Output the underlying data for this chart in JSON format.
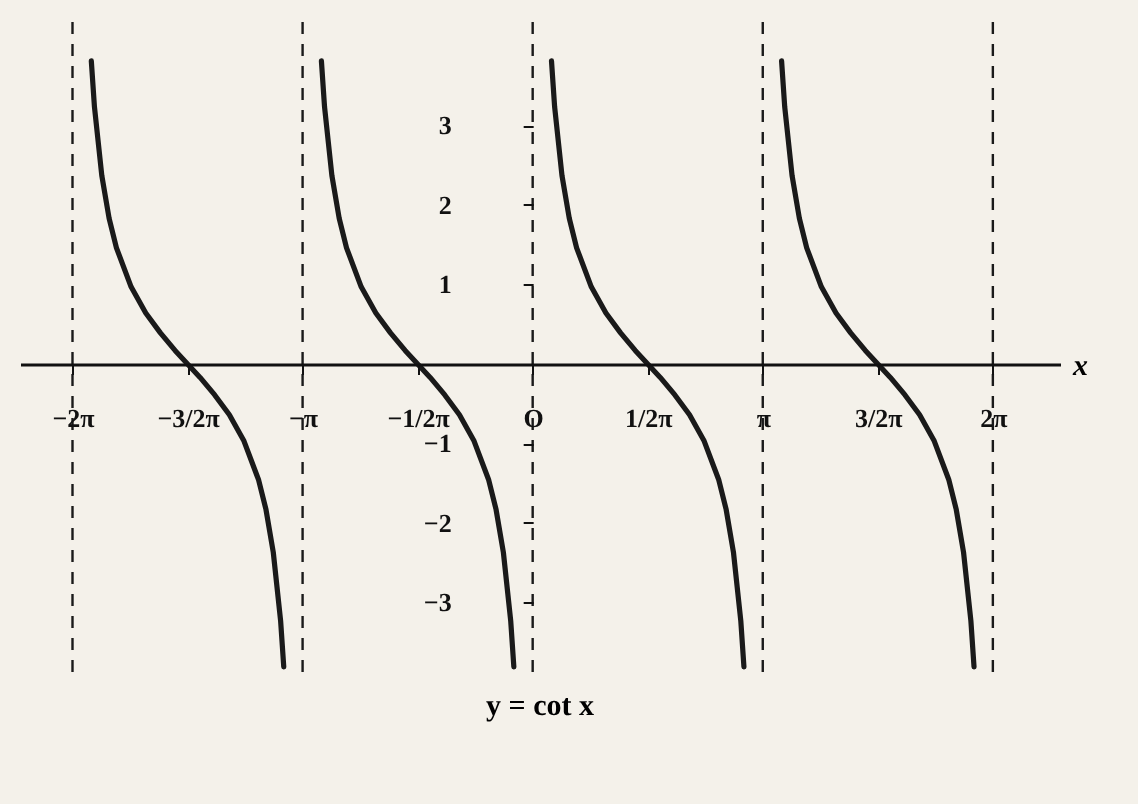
{
  "chart_data": {
    "type": "line",
    "xlabel": "x",
    "annotations": [
      "y = cot x"
    ],
    "xlim": [
      -7.0,
      7.2
    ],
    "ylim": [
      -4.0,
      4.3
    ],
    "xticks": [
      {
        "value": -6.2832,
        "label": "−2π"
      },
      {
        "value": -4.7124,
        "label": "−3/2π"
      },
      {
        "value": -3.1416,
        "label": "−π"
      },
      {
        "value": -1.5708,
        "label": "−1/2π"
      },
      {
        "value": 0,
        "label": "O"
      },
      {
        "value": 1.5708,
        "label": "1/2π"
      },
      {
        "value": 3.1416,
        "label": "π"
      },
      {
        "value": 4.7124,
        "label": "3/2π"
      },
      {
        "value": 6.2832,
        "label": "2π"
      }
    ],
    "yticks": [
      {
        "value": -3,
        "label": "−3"
      },
      {
        "value": -2,
        "label": "−2"
      },
      {
        "value": -1,
        "label": "−1"
      },
      1,
      2,
      3
    ],
    "grid": false,
    "marker": "none",
    "line_style": "solid",
    "series": [
      {
        "color": "#1a1a1a",
        "x": [
          -6.0262,
          -5.9832,
          -5.8832,
          -5.7832,
          -5.6832,
          -5.4832,
          -5.2832,
          -5.0832,
          -4.8832,
          -4.7124,
          -4.5416,
          -4.3416,
          -4.1416,
          -3.9416,
          -3.7416,
          -3.6416,
          -3.5416,
          -3.4416,
          -3.3986
        ],
        "values": [
          3.81,
          3.23,
          2.37,
          1.83,
          1.46,
          0.97,
          0.64,
          0.39,
          0.17,
          0,
          -0.17,
          -0.39,
          -0.64,
          -0.97,
          -1.46,
          -1.83,
          -2.37,
          -3.23,
          -3.81
        ]
      },
      {
        "color": "#1a1a1a",
        "x": [
          -2.8846,
          -2.8416,
          -2.7416,
          -2.6416,
          -2.5416,
          -2.3416,
          -2.1416,
          -1.9416,
          -1.7416,
          -1.5708,
          -1.4,
          -1.2,
          -1.0,
          -0.8,
          -0.6,
          -0.5,
          -0.4,
          -0.3,
          -0.257
        ],
        "values": [
          3.81,
          3.23,
          2.37,
          1.83,
          1.46,
          0.97,
          0.64,
          0.39,
          0.17,
          0,
          -0.17,
          -0.39,
          -0.64,
          -0.97,
          -1.46,
          -1.83,
          -2.37,
          -3.23,
          -3.81
        ]
      },
      {
        "color": "#1a1a1a",
        "x": [
          0.257,
          0.3,
          0.4,
          0.5,
          0.6,
          0.8,
          1.0,
          1.2,
          1.4,
          1.5708,
          1.7416,
          1.9416,
          2.1416,
          2.3416,
          2.5416,
          2.6416,
          2.7416,
          2.8416,
          2.8846
        ],
        "values": [
          3.81,
          3.23,
          2.37,
          1.83,
          1.46,
          0.97,
          0.64,
          0.39,
          0.17,
          0,
          -0.17,
          -0.39,
          -0.64,
          -0.97,
          -1.46,
          -1.83,
          -2.37,
          -3.23,
          -3.81
        ]
      },
      {
        "color": "#1a1a1a",
        "x": [
          3.3986,
          3.4416,
          3.5416,
          3.6416,
          3.7416,
          3.9416,
          4.1416,
          4.3416,
          4.5416,
          4.7124,
          4.8832,
          5.0832,
          5.2832,
          5.4832,
          5.6832,
          5.7832,
          5.8832,
          5.9832,
          6.0262
        ],
        "values": [
          3.81,
          3.23,
          2.37,
          1.83,
          1.46,
          0.97,
          0.64,
          0.39,
          0.17,
          0,
          -0.17,
          -0.39,
          -0.64,
          -0.97,
          -1.46,
          -1.83,
          -2.37,
          -3.23,
          -3.81
        ]
      }
    ],
    "ref_lines": [
      {
        "axis": "x",
        "value": -6.2832,
        "line_style": "dashed",
        "color": "#1a1a1a"
      },
      {
        "axis": "x",
        "value": -3.1416,
        "line_style": "dashed",
        "color": "#1a1a1a"
      },
      {
        "axis": "x",
        "value": 0,
        "line_style": "dashed",
        "color": "#1a1a1a"
      },
      {
        "axis": "x",
        "value": 3.1416,
        "line_style": "dashed",
        "color": "#1a1a1a"
      },
      {
        "axis": "x",
        "value": 6.2832,
        "line_style": "dashed",
        "color": "#1a1a1a"
      }
    ]
  }
}
